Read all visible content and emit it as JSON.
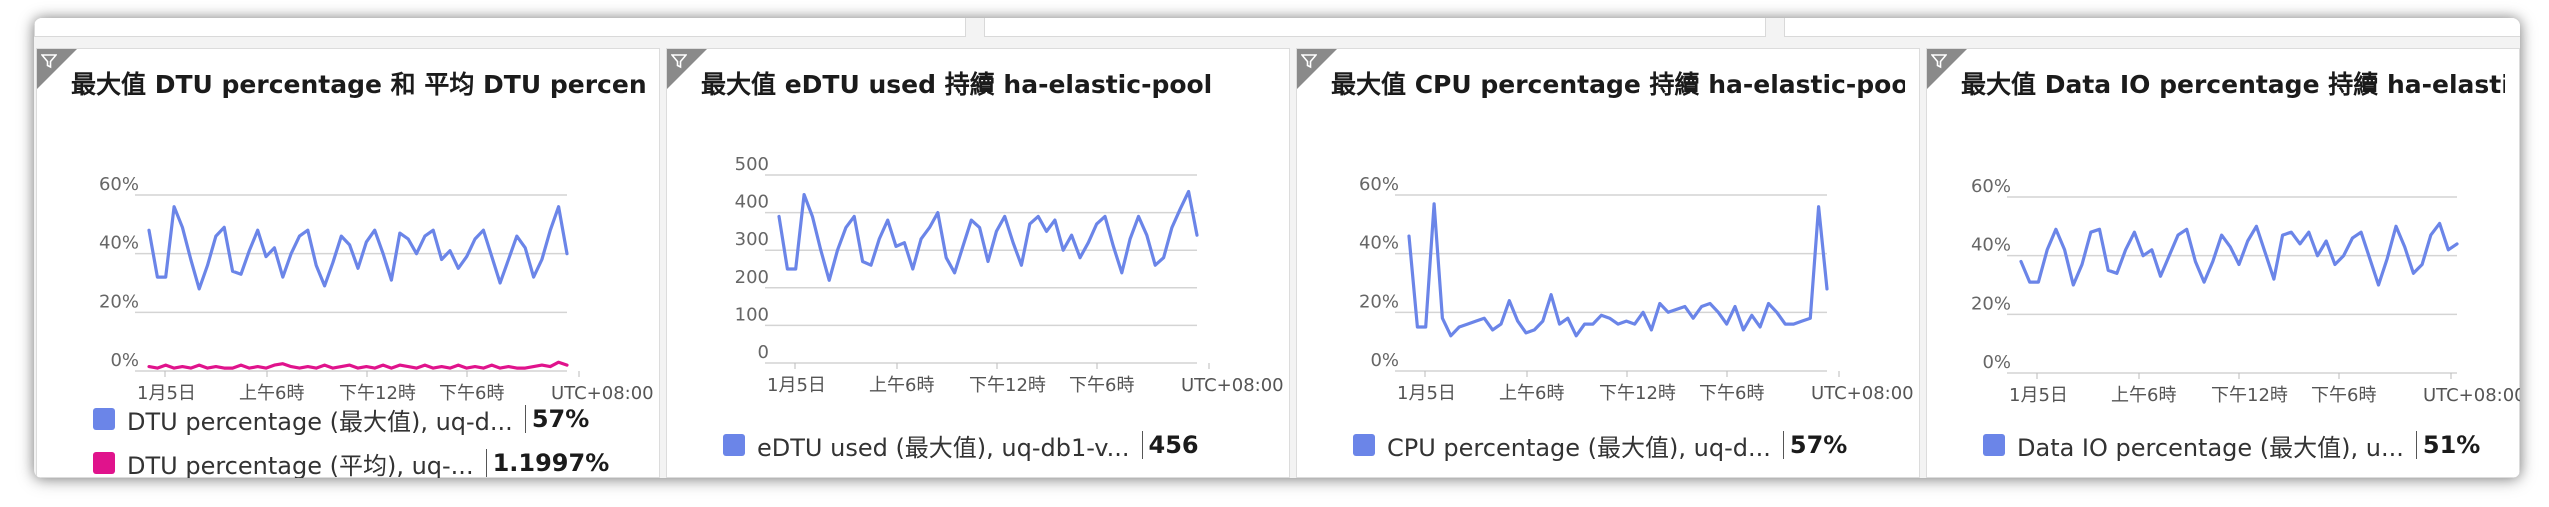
{
  "tiles": [
    {
      "title": "最大值 DTU percentage 和 平均 DTU percen...",
      "legend": [
        {
          "name": "DTU percentage (最大值), uq-d...",
          "value": "57%",
          "color": "#6b85e8"
        },
        {
          "name": "DTU percentage (平均), uq-...",
          "value": "1.1997%",
          "color": "#e0138c"
        }
      ]
    },
    {
      "title": "最大值 eDTU used 持續 ha-elastic-pool",
      "legend": [
        {
          "name": "eDTU used (最大值), uq-db1-v...",
          "value": "456",
          "color": "#6b85e8"
        }
      ]
    },
    {
      "title": "最大值 CPU percentage 持續 ha-elastic-pool",
      "legend": [
        {
          "name": "CPU percentage (最大值), uq-d...",
          "value": "57%",
          "color": "#6b85e8"
        }
      ]
    },
    {
      "title": "最大值 Data IO percentage 持續 ha-elastic-...",
      "legend": [
        {
          "name": "Data IO percentage (最大值), u...",
          "value": "51%",
          "color": "#6b85e8"
        }
      ]
    }
  ],
  "chart_data": [
    {
      "type": "line",
      "x_tick_labels": [
        "1月5日",
        "上午6時",
        "下午12時",
        "下午6時",
        "UTC+08:00"
      ],
      "y_tick_labels": [
        "0%",
        "20%",
        "40%",
        "60%"
      ],
      "ylim": [
        0,
        60
      ],
      "grid": true,
      "series": [
        {
          "name": "DTU percentage (最大值), uq-d...",
          "color": "#6b85e8",
          "values": [
            48,
            32,
            32,
            56,
            49,
            38,
            28,
            36,
            46,
            49,
            34,
            33,
            41,
            48,
            39,
            42,
            32,
            40,
            46,
            48,
            36,
            29,
            37,
            46,
            43,
            35,
            44,
            48,
            40,
            31,
            47,
            45,
            40,
            46,
            48,
            38,
            41,
            35,
            39,
            45,
            48,
            39,
            30,
            38,
            46,
            42,
            32,
            38,
            48,
            56,
            40
          ]
        },
        {
          "name": "DTU percentage (平均), uq-...",
          "color": "#e0138c",
          "values": [
            1.5,
            1,
            2,
            1,
            1.5,
            1,
            2,
            1,
            1.5,
            1,
            1,
            2,
            1,
            1.5,
            1,
            2,
            2.5,
            1.5,
            1,
            1.5,
            1,
            2,
            1,
            1.5,
            2,
            1,
            1.5,
            1,
            2,
            1,
            2,
            1.5,
            1,
            2,
            1,
            1.5,
            1,
            2,
            1,
            1.5,
            1,
            2,
            1,
            1.5,
            1,
            1,
            1.5,
            2,
            1.5,
            3,
            2
          ]
        }
      ]
    },
    {
      "type": "line",
      "x_tick_labels": [
        "1月5日",
        "上午6時",
        "下午12時",
        "下午6時",
        "UTC+08:00"
      ],
      "y_tick_labels": [
        "0",
        "100",
        "200",
        "300",
        "400",
        "500"
      ],
      "ylim": [
        0,
        500
      ],
      "grid": true,
      "series": [
        {
          "name": "eDTU used (最大值), uq-db1-v...",
          "color": "#6b85e8",
          "values": [
            390,
            250,
            250,
            448,
            390,
            300,
            220,
            300,
            360,
            390,
            270,
            260,
            330,
            380,
            310,
            320,
            250,
            330,
            360,
            400,
            280,
            240,
            310,
            380,
            360,
            270,
            350,
            390,
            320,
            260,
            370,
            390,
            350,
            380,
            300,
            340,
            280,
            320,
            370,
            390,
            310,
            240,
            330,
            390,
            340,
            260,
            280,
            360,
            410,
            456,
            340
          ]
        }
      ]
    },
    {
      "type": "line",
      "x_tick_labels": [
        "1月5日",
        "上午6時",
        "下午12時",
        "下午6時",
        "UTC+08:00"
      ],
      "y_tick_labels": [
        "0%",
        "20%",
        "40%",
        "60%"
      ],
      "ylim": [
        0,
        60
      ],
      "grid": true,
      "series": [
        {
          "name": "CPU percentage (最大值), uq-d...",
          "color": "#6b85e8",
          "values": [
            46,
            15,
            15,
            57,
            18,
            12,
            15,
            16,
            17,
            18,
            14,
            16,
            24,
            17,
            13,
            14,
            17,
            26,
            16,
            18,
            12,
            16,
            16,
            19,
            18,
            16,
            17,
            16,
            20,
            14,
            23,
            20,
            21,
            22,
            18,
            22,
            23,
            20,
            16,
            22,
            14,
            19,
            15,
            23,
            20,
            16,
            16,
            17,
            18,
            56,
            28
          ]
        }
      ]
    },
    {
      "type": "line",
      "x_tick_labels": [
        "1月5日",
        "上午6時",
        "下午12時",
        "下午6時",
        "UTC+08:00"
      ],
      "y_tick_labels": [
        "0%",
        "20%",
        "40%",
        "60%"
      ],
      "ylim": [
        0,
        60
      ],
      "grid": true,
      "series": [
        {
          "name": "Data IO percentage (最大值), u...",
          "color": "#6b85e8",
          "values": [
            38,
            31,
            31,
            42,
            49,
            42,
            30,
            37,
            48,
            49,
            35,
            34,
            42,
            48,
            40,
            42,
            33,
            40,
            47,
            49,
            38,
            31,
            38,
            47,
            43,
            37,
            45,
            50,
            41,
            32,
            47,
            48,
            44,
            48,
            40,
            45,
            37,
            40,
            46,
            48,
            39,
            30,
            39,
            50,
            43,
            34,
            37,
            47,
            51,
            42,
            44
          ]
        }
      ]
    }
  ]
}
